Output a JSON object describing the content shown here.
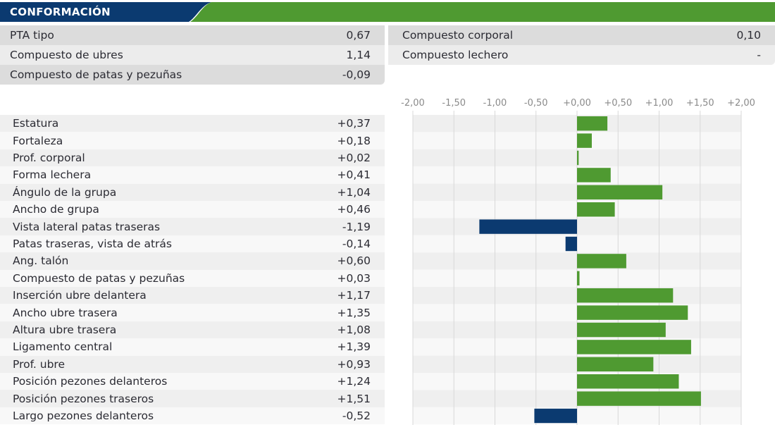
{
  "header": {
    "title": "CONFORMACIÓN",
    "colors": {
      "blue": "#0b3a70",
      "green": "#4f9a31"
    }
  },
  "summary_left": [
    {
      "label": "PTA tipo",
      "value": "0,67"
    },
    {
      "label": "Compuesto de ubres",
      "value": "1,14"
    },
    {
      "label": "Compuesto de patas y pezuñas",
      "value": "-0,09"
    }
  ],
  "summary_right": [
    {
      "label": "Compuesto corporal",
      "value": "0,10"
    },
    {
      "label": "Compuesto lechero",
      "value": "-"
    }
  ],
  "chart_data": {
    "type": "bar",
    "orientation": "horizontal",
    "xlim": [
      -2,
      2
    ],
    "ticks": [
      "-2,00",
      "-1,50",
      "-1,00",
      "-0,50",
      "+0,00",
      "+0,50",
      "+1,00",
      "+1,50",
      "+2,00"
    ],
    "tick_values": [
      -2,
      -1.5,
      -1,
      -0.5,
      0,
      0.5,
      1,
      1.5,
      2
    ],
    "grid": true,
    "colors": {
      "positive": "#4f9a31",
      "negative": "#0b3a70"
    },
    "categories": [
      "Estatura",
      "Fortaleza",
      "Prof. corporal",
      "Forma lechera",
      "Ángulo de la grupa",
      "Ancho de grupa",
      "Vista lateral patas traseras",
      "Patas traseras, vista de atrás",
      "Ang. talón",
      "Compuesto de patas y pezuñas",
      "Inserción ubre delantera",
      "Ancho ubre trasera",
      "Altura ubre trasera",
      "Ligamento central",
      "Prof. ubre",
      "Posición pezones delanteros",
      "Posición pezones traseros",
      "Largo pezones delanteros"
    ],
    "labels": [
      "+0,37",
      "+0,18",
      "+0,02",
      "+0,41",
      "+1,04",
      "+0,46",
      "-1,19",
      "-0,14",
      "+0,60",
      "+0,03",
      "+1,17",
      "+1,35",
      "+1,08",
      "+1,39",
      "+0,93",
      "+1,24",
      "+1,51",
      "-0,52"
    ],
    "values": [
      0.37,
      0.18,
      0.02,
      0.41,
      1.04,
      0.46,
      -1.19,
      -0.14,
      0.6,
      0.03,
      1.17,
      1.35,
      1.08,
      1.39,
      0.93,
      1.24,
      1.51,
      -0.52
    ]
  }
}
